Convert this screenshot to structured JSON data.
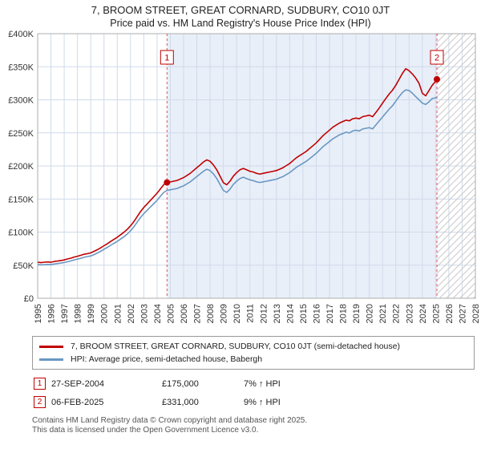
{
  "title": "7, BROOM STREET, GREAT CORNARD, SUDBURY, CO10 0JT",
  "subtitle": "Price paid vs. HM Land Registry's House Price Index (HPI)",
  "chart_data": {
    "type": "line",
    "xlim": [
      1995,
      2028
    ],
    "ylim": [
      0,
      400
    ],
    "ytick_step": 50,
    "ytick_labels": [
      "£0",
      "£50K",
      "£100K",
      "£150K",
      "£200K",
      "£250K",
      "£300K",
      "£350K",
      "£400K"
    ],
    "xtick_labels": [
      "1995",
      "1996",
      "1997",
      "1998",
      "1999",
      "2000",
      "2001",
      "2002",
      "2003",
      "2004",
      "2005",
      "2006",
      "2007",
      "2008",
      "2009",
      "2010",
      "2011",
      "2012",
      "2013",
      "2014",
      "2015",
      "2016",
      "2017",
      "2018",
      "2019",
      "2020",
      "2021",
      "2022",
      "2023",
      "2024",
      "2025",
      "2026",
      "2027",
      "2028"
    ],
    "x": [
      1995,
      1995.25,
      1995.5,
      1995.75,
      1996,
      1996.25,
      1996.5,
      1996.75,
      1997,
      1997.25,
      1997.5,
      1997.75,
      1998,
      1998.25,
      1998.5,
      1998.75,
      1999,
      1999.25,
      1999.5,
      1999.75,
      2000,
      2000.25,
      2000.5,
      2000.75,
      2001,
      2001.25,
      2001.5,
      2001.75,
      2002,
      2002.25,
      2002.5,
      2002.75,
      2003,
      2003.25,
      2003.5,
      2003.75,
      2004,
      2004.25,
      2004.5,
      2004.75,
      2005,
      2005.25,
      2005.5,
      2005.75,
      2006,
      2006.25,
      2006.5,
      2006.75,
      2007,
      2007.25,
      2007.5,
      2007.75,
      2008,
      2008.25,
      2008.5,
      2008.75,
      2009,
      2009.25,
      2009.5,
      2009.75,
      2010,
      2010.25,
      2010.5,
      2010.75,
      2011,
      2011.25,
      2011.5,
      2011.75,
      2012,
      2012.25,
      2012.5,
      2012.75,
      2013,
      2013.25,
      2013.5,
      2013.75,
      2014,
      2014.25,
      2014.5,
      2014.75,
      2015,
      2015.25,
      2015.5,
      2015.75,
      2016,
      2016.25,
      2016.5,
      2016.75,
      2017,
      2017.25,
      2017.5,
      2017.75,
      2018,
      2018.25,
      2018.5,
      2018.75,
      2019,
      2019.25,
      2019.5,
      2019.75,
      2020,
      2020.25,
      2020.5,
      2020.75,
      2021,
      2021.25,
      2021.5,
      2021.75,
      2022,
      2022.25,
      2022.5,
      2022.75,
      2023,
      2023.25,
      2023.5,
      2023.75,
      2024,
      2024.25,
      2024.5,
      2024.75,
      2025,
      2025.1
    ],
    "series": [
      {
        "name": "7, BROOM STREET, GREAT CORNARD, SUDBURY, CO10 0JT (semi-detached house)",
        "color": "#c00000",
        "values": [
          54.5,
          53.8,
          54.6,
          54.9,
          54.4,
          55.6,
          56.3,
          57.1,
          57.9,
          59.4,
          60.6,
          62.3,
          63.5,
          65,
          66.6,
          67.4,
          68.6,
          70.9,
          73.5,
          76.2,
          79.4,
          82.5,
          85.8,
          89,
          92.2,
          96,
          99.7,
          104.1,
          109.4,
          115.9,
          123.4,
          130.9,
          137.3,
          142.6,
          148,
          153.4,
          158.8,
          165.2,
          171.6,
          175,
          175.9,
          177,
          178.1,
          180.2,
          182.4,
          185.6,
          188.8,
          193.1,
          197.4,
          201.6,
          206,
          209.2,
          207,
          201.6,
          194.2,
          184.5,
          174.8,
          171.6,
          177,
          184.5,
          189.9,
          194.2,
          196.3,
          194.2,
          192,
          190.9,
          188.8,
          187.7,
          188.8,
          189.9,
          190.9,
          192,
          193.1,
          195.2,
          197.4,
          200.6,
          203.8,
          208.1,
          212.4,
          215.6,
          218.8,
          222,
          226.3,
          230.6,
          234.9,
          240.3,
          245.6,
          249.9,
          254.2,
          258.5,
          261.7,
          264.9,
          267.1,
          269.2,
          268.2,
          271.4,
          272.4,
          271.4,
          274.6,
          275.6,
          276.7,
          274.6,
          281,
          287.5,
          295,
          302,
          309,
          314.5,
          322,
          331,
          340,
          347,
          344,
          339,
          333,
          325,
          310,
          306,
          314,
          322,
          328,
          331
        ]
      },
      {
        "name": "HPI: Average price, semi-detached house, Babergh",
        "color": "#6a97c2",
        "values": [
          51,
          50.5,
          50.8,
          51.2,
          51,
          51.8,
          52.5,
          53.2,
          54,
          55.2,
          56.5,
          58,
          59.2,
          60.5,
          62,
          63,
          64,
          66,
          68.5,
          71,
          74,
          77,
          80,
          83,
          86,
          89.5,
          93,
          97,
          102,
          108,
          115,
          122,
          128,
          133,
          138,
          143,
          148,
          154,
          160,
          163,
          164,
          165,
          166,
          168,
          170,
          173,
          176,
          180,
          184,
          188,
          192,
          195,
          193,
          188,
          181,
          172,
          163,
          160,
          165,
          172,
          177,
          181,
          183,
          181,
          179,
          178,
          176,
          175,
          176,
          177,
          178,
          179,
          180,
          182,
          184,
          187,
          190,
          194,
          198,
          201,
          204,
          207,
          211,
          215,
          219,
          224,
          229,
          233,
          237,
          241,
          244,
          247,
          249,
          251,
          250,
          253,
          254,
          253,
          256,
          257,
          258,
          256,
          262,
          268,
          274,
          280,
          286,
          291,
          298,
          305,
          311,
          315,
          314,
          310,
          305,
          300,
          295,
          293,
          297,
          302,
          303,
          304
        ]
      }
    ],
    "markers": [
      {
        "label": "1",
        "x": 2004.75,
        "y": 175
      },
      {
        "label": "2",
        "x": 2025.1,
        "y": 331
      }
    ],
    "shaded_region": [
      2004.75,
      2025.1
    ],
    "hatched_region": [
      2025.1,
      2028
    ],
    "colors": {
      "shaded": "#e9eff9",
      "grid": "#cfdae9",
      "marker_line": "#dd5555",
      "marker_dot": "#c00000",
      "flag": "#c00000",
      "hatch": "#c9c9c9",
      "border": "#adadad"
    },
    "legend_position": "bottom",
    "grid": true
  },
  "annotations": [
    {
      "num": "1",
      "date": "27-SEP-2004",
      "price": "£175,000",
      "hpi": "7% ↑ HPI"
    },
    {
      "num": "2",
      "date": "06-FEB-2025",
      "price": "£331,000",
      "hpi": "9% ↑ HPI"
    }
  ],
  "footer": {
    "line1": "Contains HM Land Registry data © Crown copyright and database right 2025.",
    "line2": "This data is licensed under the Open Government Licence v3.0."
  }
}
